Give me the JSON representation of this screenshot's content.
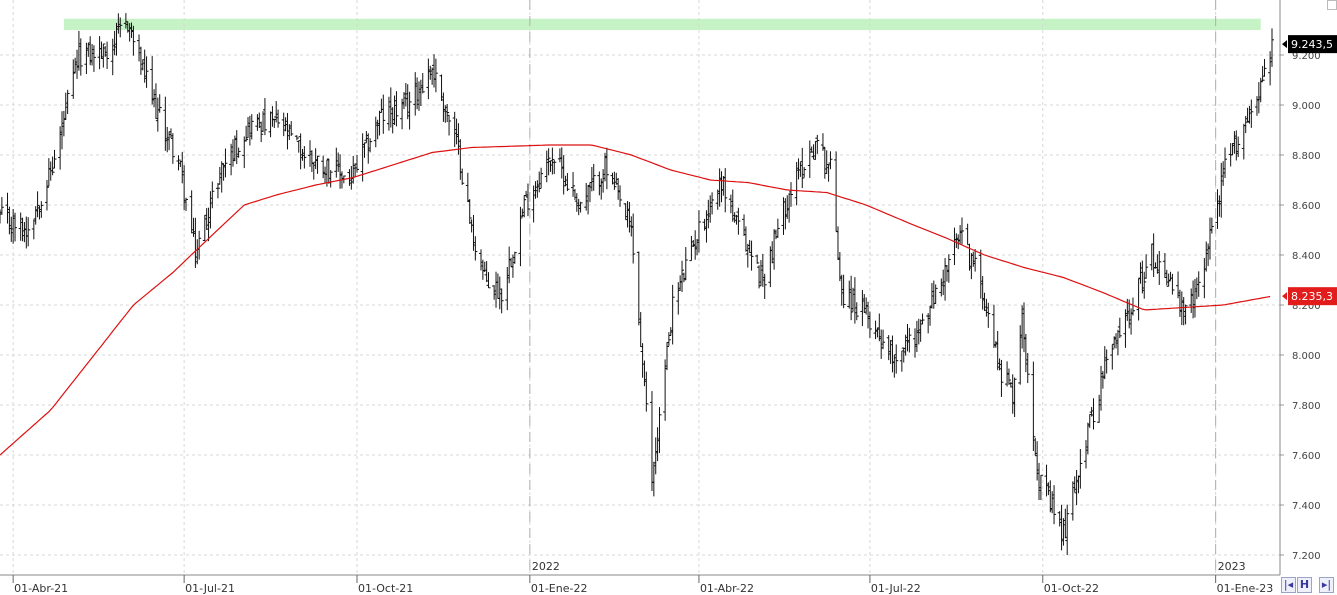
{
  "chart_data": {
    "type": "ohlc",
    "title": "",
    "xlabel": "",
    "ylabel": "",
    "ylim": [
      7120,
      9420
    ],
    "date_range": [
      "2021-03-25",
      "2023-01-31"
    ],
    "y_ticks": [
      {
        "value": 7200,
        "label": "7.200"
      },
      {
        "value": 7400,
        "label": "7.400"
      },
      {
        "value": 7600,
        "label": "7.600"
      },
      {
        "value": 7800,
        "label": "7.800"
      },
      {
        "value": 8000,
        "label": "8.000"
      },
      {
        "value": 8200,
        "label": "8.200"
      },
      {
        "value": 8400,
        "label": "8.400"
      },
      {
        "value": 8600,
        "label": "8.600"
      },
      {
        "value": 8800,
        "label": "8.800"
      },
      {
        "value": 9000,
        "label": "9.000"
      },
      {
        "value": 9200,
        "label": "9.200"
      }
    ],
    "x_ticks": [
      {
        "date": "2021-04-01",
        "label": "01-Abr-21"
      },
      {
        "date": "2021-07-01",
        "label": "01-Jul-21"
      },
      {
        "date": "2021-10-01",
        "label": "01-Oct-21"
      },
      {
        "date": "2022-01-01",
        "label": "01-Ene-22"
      },
      {
        "date": "2022-04-01",
        "label": "01-Abr-22"
      },
      {
        "date": "2022-07-01",
        "label": "01-Jul-22"
      },
      {
        "date": "2022-10-01",
        "label": "01-Oct-22"
      },
      {
        "date": "2023-01-01",
        "label": "01-Ene-23"
      }
    ],
    "year_markers": [
      {
        "date": "2022-01-01",
        "label": "2022"
      },
      {
        "date": "2023-01-01",
        "label": "2023"
      }
    ],
    "resistance_band": {
      "from": 9300,
      "to": 9345,
      "color": "#c6f3c6",
      "start_date": "2021-04-28",
      "end_date": "2023-01-25"
    },
    "price_anchors": [
      [
        "2021-03-25",
        8550
      ],
      [
        "2021-04-08",
        8500
      ],
      [
        "2021-04-22",
        8750
      ],
      [
        "2021-05-06",
        9200
      ],
      [
        "2021-05-20",
        9210
      ],
      [
        "2021-06-01",
        9330
      ],
      [
        "2021-06-15",
        9000
      ],
      [
        "2021-06-28",
        8780
      ],
      [
        "2021-07-07",
        8400
      ],
      [
        "2021-07-21",
        8750
      ],
      [
        "2021-08-05",
        8920
      ],
      [
        "2021-08-20",
        8930
      ],
      [
        "2021-09-03",
        8800
      ],
      [
        "2021-09-16",
        8750
      ],
      [
        "2021-09-28",
        8700
      ],
      [
        "2021-10-13",
        8950
      ],
      [
        "2021-10-27",
        8990
      ],
      [
        "2021-11-10",
        9150
      ],
      [
        "2021-11-24",
        8820
      ],
      [
        "2021-12-01",
        8500
      ],
      [
        "2021-12-08",
        8300
      ],
      [
        "2021-12-17",
        8250
      ],
      [
        "2021-12-29",
        8600
      ],
      [
        "2022-01-13",
        8800
      ],
      [
        "2022-01-28",
        8600
      ],
      [
        "2022-02-10",
        8750
      ],
      [
        "2022-02-24",
        8500
      ],
      [
        "2022-03-07",
        7500
      ],
      [
        "2022-03-18",
        8200
      ],
      [
        "2022-04-01",
        8500
      ],
      [
        "2022-04-13",
        8700
      ],
      [
        "2022-04-22",
        8500
      ],
      [
        "2022-05-05",
        8300
      ],
      [
        "2022-05-19",
        8650
      ],
      [
        "2022-06-02",
        8850
      ],
      [
        "2022-06-10",
        8750
      ],
      [
        "2022-06-16",
        8250
      ],
      [
        "2022-06-30",
        8150
      ],
      [
        "2022-07-14",
        8000
      ],
      [
        "2022-07-28",
        8100
      ],
      [
        "2022-08-11",
        8350
      ],
      [
        "2022-08-18",
        8480
      ],
      [
        "2022-08-29",
        8300
      ],
      [
        "2022-09-08",
        7950
      ],
      [
        "2022-09-15",
        7850
      ],
      [
        "2022-09-20",
        8150
      ],
      [
        "2022-09-29",
        7500
      ],
      [
        "2022-10-05",
        7400
      ],
      [
        "2022-10-12",
        7280
      ],
      [
        "2022-10-20",
        7550
      ],
      [
        "2022-11-03",
        7950
      ],
      [
        "2022-11-17",
        8200
      ],
      [
        "2022-11-28",
        8400
      ],
      [
        "2022-12-08",
        8300
      ],
      [
        "2022-12-15",
        8150
      ],
      [
        "2022-12-22",
        8250
      ],
      [
        "2023-01-06",
        8750
      ],
      [
        "2023-01-18",
        8950
      ],
      [
        "2023-01-25",
        9080
      ],
      [
        "2023-01-31",
        9243.5
      ]
    ],
    "moving_average": {
      "color": "#dd1111",
      "anchors": [
        [
          "2021-03-25",
          7600
        ],
        [
          "2021-04-21",
          7780
        ],
        [
          "2021-05-12",
          7980
        ],
        [
          "2021-06-04",
          8200
        ],
        [
          "2021-06-25",
          8330
        ],
        [
          "2021-07-16",
          8480
        ],
        [
          "2021-08-02",
          8600
        ],
        [
          "2021-08-19",
          8640
        ],
        [
          "2021-09-09",
          8680
        ],
        [
          "2021-09-29",
          8710
        ],
        [
          "2021-10-20",
          8760
        ],
        [
          "2021-11-10",
          8810
        ],
        [
          "2021-12-01",
          8830
        ],
        [
          "2021-12-22",
          8835
        ],
        [
          "2022-01-11",
          8840
        ],
        [
          "2022-02-03",
          8840
        ],
        [
          "2022-02-24",
          8800
        ],
        [
          "2022-03-17",
          8740
        ],
        [
          "2022-04-07",
          8700
        ],
        [
          "2022-04-27",
          8690
        ],
        [
          "2022-05-18",
          8660
        ],
        [
          "2022-06-08",
          8650
        ],
        [
          "2022-06-29",
          8600
        ],
        [
          "2022-07-21",
          8530
        ],
        [
          "2022-08-10",
          8470
        ],
        [
          "2022-08-31",
          8400
        ],
        [
          "2022-09-21",
          8350
        ],
        [
          "2022-10-12",
          8310
        ],
        [
          "2022-11-02",
          8250
        ],
        [
          "2022-11-24",
          8180
        ],
        [
          "2022-12-15",
          8190
        ],
        [
          "2023-01-05",
          8200
        ],
        [
          "2023-01-31",
          8235.3
        ]
      ]
    },
    "last_price": {
      "value": 9243.5,
      "label": "9.243,5",
      "color": "#000000"
    },
    "ma_last": {
      "value": 8235.3,
      "label": "8.235,3",
      "color": "#e21b1b"
    },
    "grid": true,
    "legend": "none"
  },
  "controls": {
    "nav_prev_label": "|◂",
    "save_label": "H",
    "nav_next_label": "▸|"
  }
}
